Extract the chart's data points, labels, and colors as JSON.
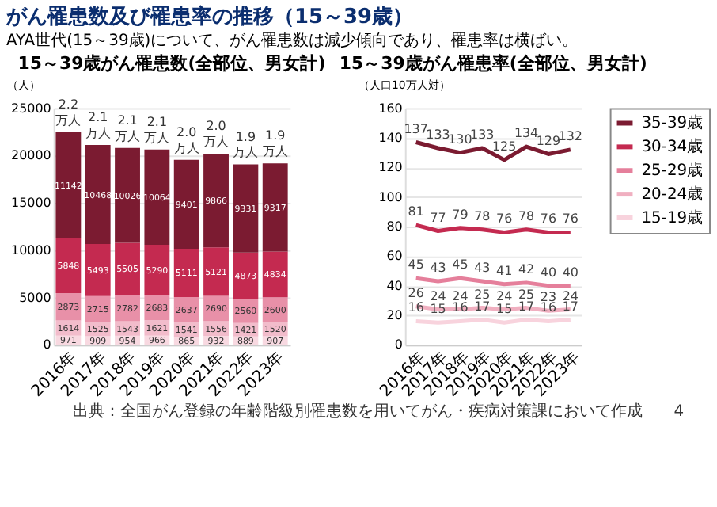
{
  "chart_data": [
    {
      "type": "bar",
      "title": "15～39歳がん罹患数(全部位、男女計)",
      "ylabel": "（人）",
      "stacked": true,
      "data_labels": true,
      "grid": "y",
      "legend": false,
      "categories": [
        "2016年",
        "2017年",
        "2018年",
        "2019年",
        "2020年",
        "2021年",
        "2022年",
        "2023年"
      ],
      "ylim": [
        0,
        25000
      ],
      "yticks": [
        0,
        5000,
        10000,
        15000,
        20000,
        25000
      ],
      "series": [
        {
          "color": "#f8d9e1",
          "values": [
            971,
            909,
            954,
            966,
            865,
            932,
            889,
            907
          ]
        },
        {
          "color": "#f2bccb",
          "values": [
            1614,
            1525,
            1543,
            1621,
            1541,
            1556,
            1421,
            1520
          ]
        },
        {
          "color": "#e890a8",
          "values": [
            2873,
            2715,
            2782,
            2683,
            2637,
            2690,
            2560,
            2600
          ]
        },
        {
          "color": "#c42a50",
          "values": [
            5848,
            5493,
            5505,
            5290,
            5111,
            5121,
            4873,
            4834
          ]
        },
        {
          "color": "#7b1b31",
          "values": [
            11142,
            10468,
            10026,
            10064,
            9401,
            9866,
            9331,
            9317
          ]
        }
      ],
      "annotations": [
        "がん罹患数及び罹患率の推移（15～39歳）",
        "AYA世代(15～39歳)について、がん罹患数は減少傾向であり、罹患率は横ばい。",
        {
          "text": "2.2\n万人",
          "x": "2016年",
          "y": 22448
        },
        {
          "text": "2.1\n万人",
          "x": "2017年",
          "y": 21110
        },
        {
          "text": "2.1\n万人",
          "x": "2018年",
          "y": 20810
        },
        {
          "text": "2.1\n万人",
          "x": "2019年",
          "y": 20624
        },
        {
          "text": "2.0\n万人",
          "x": "2020年",
          "y": 19555
        },
        {
          "text": "2.0\n万人",
          "x": "2021年",
          "y": 20165
        },
        {
          "text": "1.9\n万人",
          "x": "2022年",
          "y": 19074
        },
        {
          "text": "1.9\n万人",
          "x": "2023年",
          "y": 19178
        }
      ]
    },
    {
      "type": "line",
      "title": "15～39歳がん罹患率(全部位、男女計)",
      "ylabel": "（人口10万人対）",
      "data_labels": true,
      "grid": "y",
      "legend": "right",
      "marker": "none",
      "line_style": "solid",
      "categories": [
        "2016年",
        "2017年",
        "2018年",
        "2019年",
        "2020年",
        "2021年",
        "2022年",
        "2023年"
      ],
      "ylim": [
        0,
        160
      ],
      "yticks": [
        0,
        20,
        40,
        60,
        80,
        100,
        120,
        140,
        160
      ],
      "series": [
        {
          "name": "35-39歳",
          "color": "#7b1b31",
          "values": [
            137,
            133,
            130,
            133,
            125,
            134,
            129,
            132
          ]
        },
        {
          "name": "30-34歳",
          "color": "#c42a50",
          "values": [
            81,
            77,
            79,
            78,
            76,
            78,
            76,
            76
          ]
        },
        {
          "name": "25-29歳",
          "color": "#e57f9b",
          "values": [
            45,
            43,
            45,
            43,
            41,
            42,
            40,
            40
          ]
        },
        {
          "name": "20-24歳",
          "color": "#f0afc0",
          "values": [
            26,
            24,
            24,
            25,
            24,
            25,
            23,
            24
          ]
        },
        {
          "name": "15-19歳",
          "color": "#f8d3dd",
          "values": [
            16,
            15,
            16,
            17,
            15,
            17,
            16,
            17
          ]
        }
      ],
      "annotations": [
        "出典：全国がん登録の年齢階級別罹患数を用いてがん・疾病対策課において作成",
        "4"
      ]
    }
  ]
}
